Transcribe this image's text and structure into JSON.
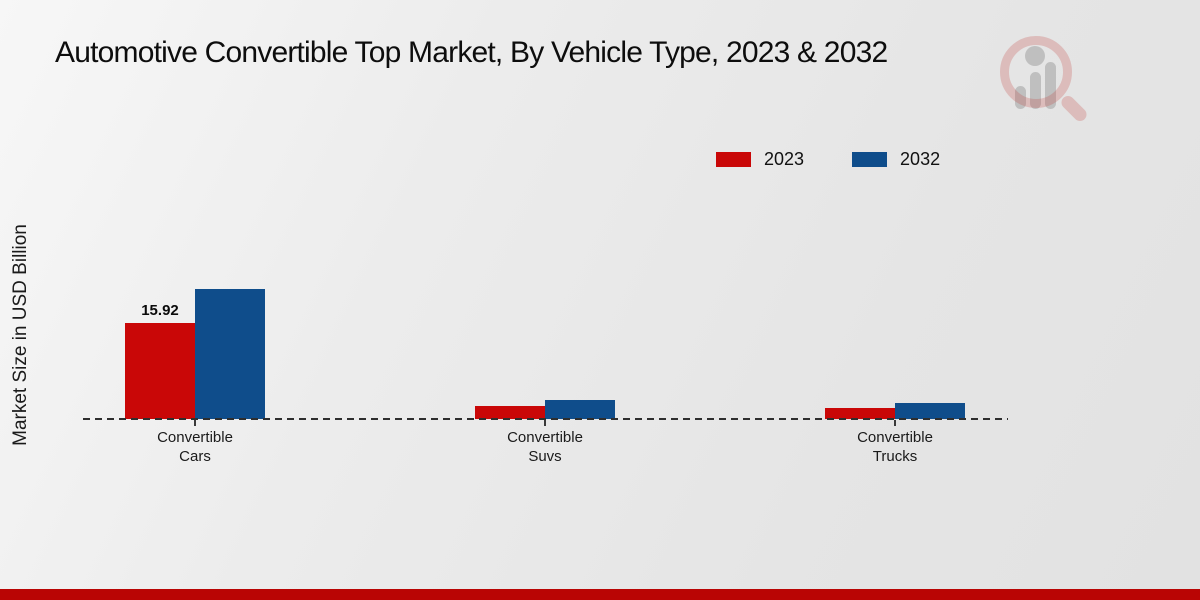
{
  "title": "Automotive Convertible Top Market, By Vehicle Type, 2023 & 2032",
  "ylabel": "Market Size in USD Billion",
  "legend": {
    "items": [
      {
        "label": "2023",
        "color": "#c90707"
      },
      {
        "label": "2032",
        "color": "#0f4d8b"
      }
    ]
  },
  "logo": {
    "name": "market-research-magnifier-logo",
    "ring_color": "rgba(197,74,70,0.26)",
    "bars_color": "rgba(150,150,150,0.48)"
  },
  "footer": {
    "color": "#b90504"
  },
  "chart_data": {
    "type": "bar",
    "categories": [
      "Convertible Cars",
      "Convertible Suvs",
      "Convertible Trucks"
    ],
    "series": [
      {
        "name": "2023",
        "color": "#c90707",
        "values": [
          15.92,
          2.1,
          1.8
        ]
      },
      {
        "name": "2032",
        "color": "#0f4d8b",
        "values": [
          21.6,
          3.1,
          2.75
        ]
      }
    ],
    "title": "Automotive Convertible Top Market, By Vehicle Type, 2023 & 2032",
    "xlabel": "",
    "ylabel": "Market Size in USD Billion",
    "ylim": [
      0,
      45.6
    ],
    "grid": false,
    "legend_position": "upper-right",
    "baseline_style": "dashed",
    "bar_value_labels": [
      {
        "category_index": 0,
        "series_index": 0,
        "text": "15.92"
      }
    ]
  }
}
